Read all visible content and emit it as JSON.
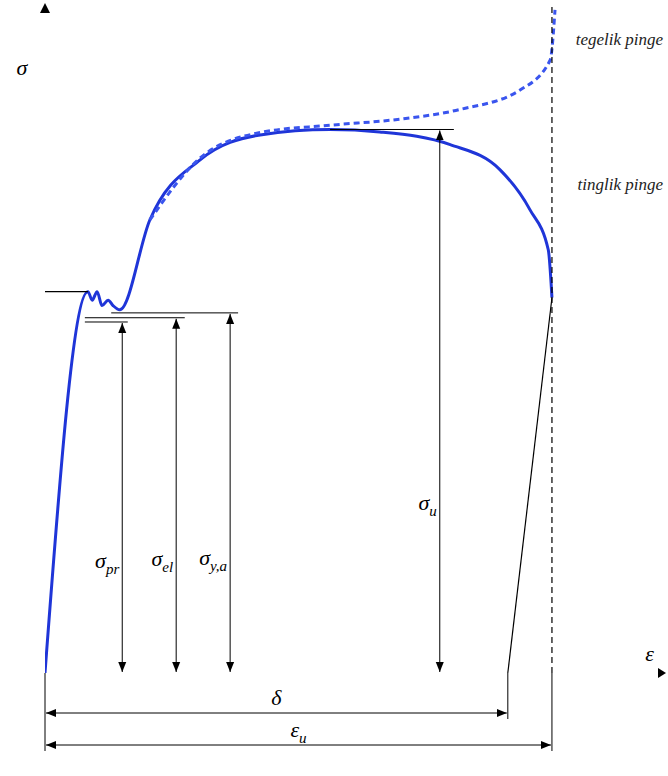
{
  "chart_data": {
    "type": "line",
    "x_label": "ε",
    "y_label": "σ",
    "xlim": [
      0,
      100
    ],
    "ylim": [
      0,
      110
    ],
    "tick_labels": false,
    "grid": false,
    "series": [
      {
        "name": "tinglik pinge",
        "color": "#1f35d8",
        "line_style": "solid",
        "marker": "none",
        "x": [
          0,
          7.0,
          7.7,
          8.5,
          9.3,
          10.3,
          11.1,
          12.2,
          17.1,
          25.3,
          35.1,
          46.5,
          54.6,
          66.1,
          74.2,
          79.1,
          82.1,
          82.7
        ],
        "values": [
          0,
          62.8,
          61.4,
          62.8,
          60.5,
          61.4,
          60.5,
          59.8,
          74.6,
          84.5,
          88.6,
          89.5,
          89.1,
          87.0,
          82.9,
          76.3,
          69.7,
          61.8
        ]
      },
      {
        "name": "tegelik pinge",
        "color": "#3a55ee",
        "line_style": "dashed",
        "marker": "none",
        "x": [
          17.1,
          25.3,
          35.1,
          46.5,
          57.9,
          67.7,
          77.5,
          82.4,
          83.2
        ],
        "values": [
          74.6,
          84.8,
          89.0,
          90.2,
          91.2,
          92.8,
          96.0,
          100.9,
          109.2
        ]
      },
      {
        "color": "#000000",
        "line_style": "solid",
        "marker": "none",
        "x": [
          0,
          7.0
        ],
        "values": [
          62.8,
          62.8
        ]
      },
      {
        "color": "#000000",
        "line_style": "solid",
        "marker": "none",
        "x": [
          75.5,
          82.7
        ],
        "values": [
          0,
          61.8
        ]
      },
      {
        "color": "#000000",
        "line_style": "dashed",
        "marker": "none",
        "x": [
          82.7,
          82.7
        ],
        "values": [
          0,
          110
        ]
      }
    ],
    "levels": [
      {
        "label": "σpr",
        "x": 12.6,
        "y": 57.8,
        "from": 6.5,
        "to": 13.5
      },
      {
        "label": "σel",
        "x": 21.4,
        "y": 58.5,
        "from": 6.5,
        "to": 22.8
      },
      {
        "label": "σy,a",
        "x": 30.2,
        "y": 59.3,
        "from": 10.8,
        "to": 31.5
      },
      {
        "label": "σu",
        "x": 64.4,
        "y": 89.5,
        "from": 46.5,
        "to": 66.7
      }
    ],
    "dimensions": [
      {
        "label": "δ",
        "from": 0,
        "to": 75.5
      },
      {
        "label": "εu",
        "from": 0,
        "to": 82.7
      }
    ]
  }
}
